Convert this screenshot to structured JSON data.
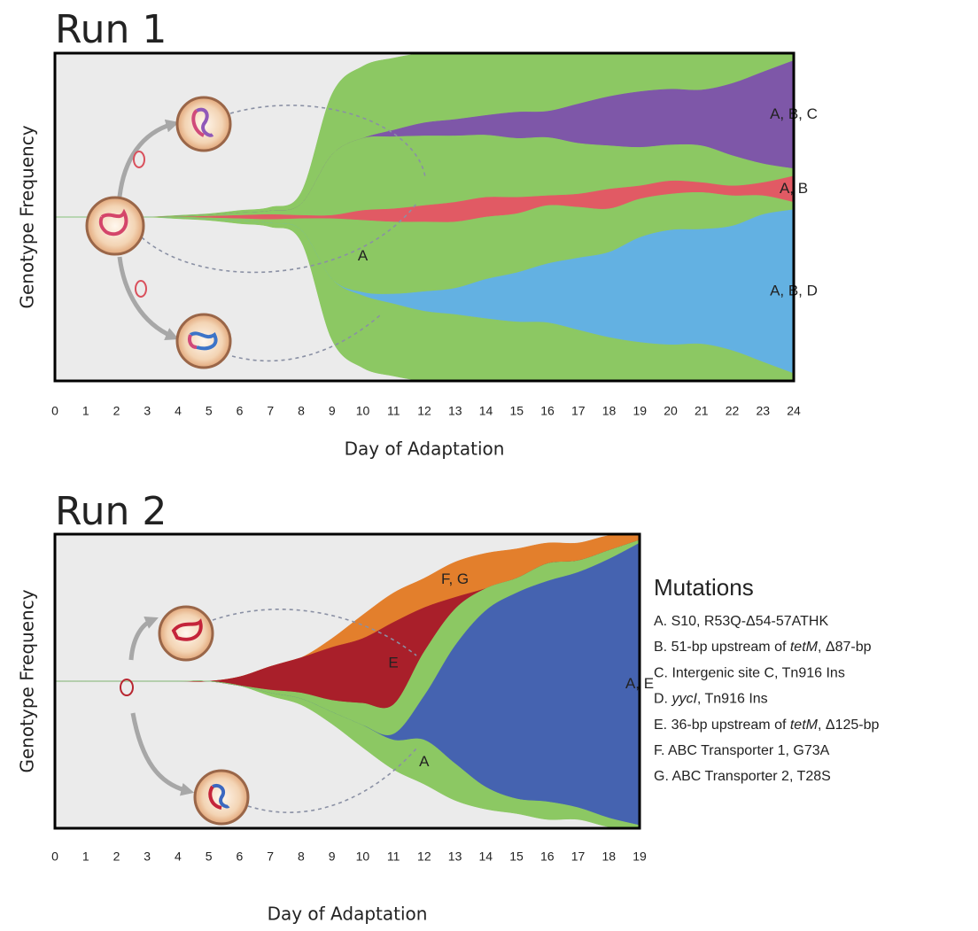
{
  "chart_data": [
    {
      "type": "muller",
      "title": "Run 1",
      "xlabel": "Day of Adaptation",
      "ylabel": "Genotype Frequency",
      "x": [
        0,
        1,
        2,
        3,
        4,
        5,
        6,
        7,
        8,
        9,
        10,
        11,
        12,
        13,
        14,
        15,
        16,
        17,
        18,
        19,
        20,
        21,
        22,
        23,
        24
      ],
      "xlim": [
        0,
        24
      ],
      "xticks": [
        0,
        1,
        2,
        3,
        4,
        5,
        6,
        7,
        8,
        9,
        10,
        11,
        12,
        13,
        14,
        15,
        16,
        17,
        18,
        19,
        20,
        21,
        22,
        23,
        24
      ],
      "ylim": [
        0,
        1
      ],
      "series": [
        {
          "name": "A",
          "color": "#8cc863",
          "values": [
            0,
            0,
            0,
            0,
            0.01,
            0.015,
            0.03,
            0.045,
            0.14,
            0.74,
            0.88,
            0.88,
            0.85,
            0.81,
            0.76,
            0.72,
            0.71,
            0.62,
            0.53,
            0.47,
            0.44,
            0.45,
            0.37,
            0.23,
            0.09
          ]
        },
        {
          "name": "A, B, C",
          "color": "#7e57a8",
          "values": [
            0,
            0,
            0,
            0,
            0,
            0,
            0,
            0,
            0,
            0,
            0,
            0.02,
            0.04,
            0.05,
            0.06,
            0.08,
            0.08,
            0.12,
            0.15,
            0.17,
            0.17,
            0.17,
            0.22,
            0.28,
            0.33
          ]
        },
        {
          "name": "A, B",
          "color": "#e15a64",
          "values": [
            0,
            0,
            0,
            0,
            0,
            0.005,
            0.01,
            0.015,
            0.01,
            0.01,
            0.03,
            0.04,
            0.05,
            0.06,
            0.06,
            0.05,
            0.03,
            0.04,
            0.06,
            0.04,
            0.04,
            0.03,
            0.03,
            0.04,
            0.08
          ]
        },
        {
          "name": "A, B, D",
          "color": "#63b1e2",
          "values": [
            0,
            0,
            0,
            0,
            0,
            0,
            0,
            0,
            0,
            0,
            0.01,
            0.03,
            0.06,
            0.08,
            0.12,
            0.15,
            0.18,
            0.22,
            0.26,
            0.32,
            0.35,
            0.35,
            0.38,
            0.45,
            0.5
          ]
        }
      ]
    },
    {
      "type": "muller",
      "title": "Run 2",
      "xlabel": "Day of Adaptation",
      "ylabel": "Genotype Frequency",
      "x": [
        0,
        1,
        2,
        3,
        4,
        5,
        6,
        7,
        8,
        9,
        10,
        11,
        12,
        13,
        14,
        15,
        16,
        17,
        18,
        19
      ],
      "xlim": [
        0,
        19
      ],
      "xticks": [
        0,
        1,
        2,
        3,
        4,
        5,
        6,
        7,
        8,
        9,
        10,
        11,
        12,
        13,
        14,
        15,
        16,
        17,
        18,
        19
      ],
      "ylim": [
        0,
        1
      ],
      "series": [
        {
          "name": "A",
          "color": "#8cc863",
          "values": [
            0,
            0,
            0,
            0,
            0,
            0,
            0,
            0.02,
            0.04,
            0.08,
            0.15,
            0.2,
            0.3,
            0.25,
            0.15,
            0.1,
            0.12,
            0.08,
            0.06,
            0.02
          ]
        },
        {
          "name": "E",
          "color": "#a91f2a",
          "values": [
            0,
            0,
            0,
            0,
            0,
            0,
            0.03,
            0.08,
            0.12,
            0.18,
            0.22,
            0.28,
            0.15,
            0.04,
            0,
            0,
            0,
            0,
            0,
            0
          ]
        },
        {
          "name": "F, G",
          "color": "#e37f2c",
          "values": [
            0,
            0,
            0,
            0,
            0,
            0,
            0,
            0,
            0,
            0.03,
            0.08,
            0.1,
            0.1,
            0.12,
            0.12,
            0.1,
            0.07,
            0.06,
            0.05,
            0.02
          ]
        },
        {
          "name": "A, E",
          "color": "#4563b0",
          "values": [
            0,
            0,
            0,
            0,
            0,
            0,
            0,
            0,
            0,
            0,
            0,
            0.02,
            0.15,
            0.4,
            0.6,
            0.7,
            0.75,
            0.8,
            0.88,
            0.96
          ]
        }
      ],
      "legend_title": "Mutations",
      "legend_items": [
        [
          "A. S10, R53Q-Δ54-57ATHK"
        ],
        [
          "B. 51-bp upstream of ",
          "tetM",
          ", Δ87-bp"
        ],
        [
          "C. Intergenic site C, Tn916 Ins"
        ],
        [
          "D. ",
          "yycI",
          ", Tn916 Ins"
        ],
        [
          "E. 36-bp upstream of ",
          "tetM",
          ", Δ125-bp"
        ],
        [
          "F. ABC Transporter 1, G73A"
        ],
        [
          "G. ABC Transporter 2, T28S"
        ]
      ]
    }
  ]
}
